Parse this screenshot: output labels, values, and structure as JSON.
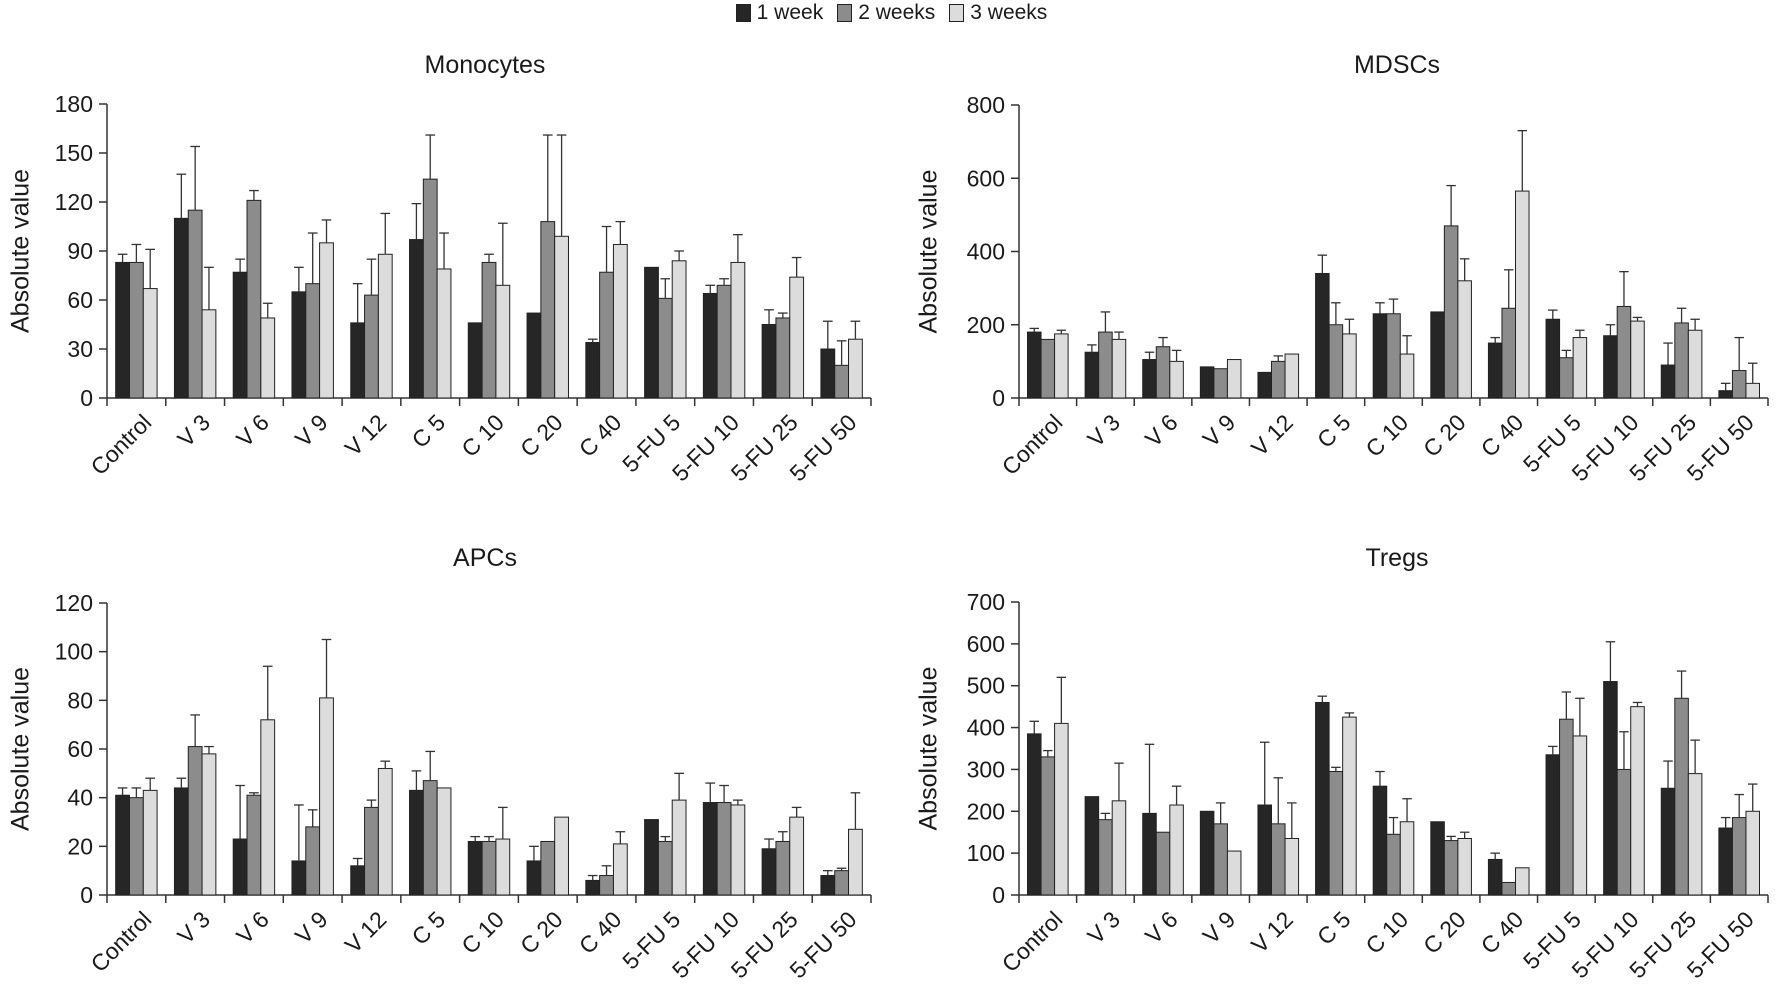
{
  "legend": {
    "items": [
      {
        "label": "1 week",
        "color": "#262626"
      },
      {
        "label": "2 weeks",
        "color": "#8c8c8c"
      },
      {
        "label": "3 weeks",
        "color": "#dcdcdc"
      }
    ]
  },
  "chart_data": [
    {
      "type": "bar",
      "title": "Monocytes",
      "ylabel": "Absolute value",
      "xlabel": "",
      "ylim": [
        0,
        180
      ],
      "yticks": [
        0,
        30,
        60,
        90,
        120,
        150,
        180
      ],
      "categories": [
        "Control",
        "V 3",
        "V 6",
        "V 9",
        "V 12",
        "C 5",
        "C 10",
        "C 20",
        "C 40",
        "5-FU 5",
        "5-FU 10",
        "5-FU 25",
        "5-FU 50"
      ],
      "series": [
        {
          "name": "1 week",
          "values": [
            83,
            110,
            77,
            65,
            46,
            97,
            46,
            52,
            34,
            80,
            64,
            45,
            30
          ],
          "errors": [
            5,
            27,
            8,
            15,
            24,
            22,
            0,
            0,
            2,
            0,
            5,
            9,
            17
          ]
        },
        {
          "name": "2 weeks",
          "values": [
            83,
            115,
            121,
            70,
            63,
            134,
            83,
            108,
            77,
            61,
            69,
            49,
            20
          ],
          "errors": [
            11,
            39,
            6,
            31,
            22,
            27,
            5,
            53,
            28,
            12,
            4,
            3,
            15
          ]
        },
        {
          "name": "3 weeks",
          "values": [
            67,
            54,
            49,
            95,
            88,
            79,
            69,
            99,
            94,
            84,
            83,
            74,
            36
          ],
          "errors": [
            24,
            26,
            9,
            14,
            25,
            22,
            38,
            62,
            14,
            6,
            17,
            12,
            11
          ]
        }
      ]
    },
    {
      "type": "bar",
      "title": "MDSCs",
      "ylabel": "Absolute value",
      "xlabel": "",
      "ylim": [
        0,
        800
      ],
      "yticks": [
        0,
        200,
        400,
        600,
        800
      ],
      "categories": [
        "Control",
        "V 3",
        "V 6",
        "V 9",
        "V 12",
        "C 5",
        "C 10",
        "C 20",
        "C 40",
        "5-FU 5",
        "5-FU 10",
        "5-FU 25",
        "5-FU 50"
      ],
      "series": [
        {
          "name": "1 week",
          "values": [
            180,
            125,
            105,
            85,
            70,
            340,
            230,
            235,
            150,
            215,
            170,
            90,
            20
          ],
          "errors": [
            10,
            20,
            20,
            0,
            0,
            50,
            30,
            0,
            15,
            25,
            30,
            60,
            20
          ]
        },
        {
          "name": "2 weeks",
          "values": [
            160,
            180,
            140,
            80,
            100,
            200,
            230,
            470,
            245,
            110,
            250,
            205,
            75
          ],
          "errors": [
            0,
            55,
            25,
            0,
            15,
            60,
            40,
            110,
            105,
            20,
            95,
            40,
            90
          ]
        },
        {
          "name": "3 weeks",
          "values": [
            175,
            160,
            100,
            105,
            120,
            175,
            120,
            320,
            565,
            165,
            210,
            185,
            40
          ],
          "errors": [
            10,
            20,
            30,
            0,
            0,
            40,
            50,
            60,
            165,
            20,
            10,
            30,
            55
          ]
        }
      ]
    },
    {
      "type": "bar",
      "title": "APCs",
      "ylabel": "Absolute value",
      "xlabel": "",
      "ylim": [
        0,
        120
      ],
      "yticks": [
        0,
        20,
        40,
        60,
        80,
        100,
        120
      ],
      "categories": [
        "Control",
        "V 3",
        "V 6",
        "V 9",
        "V 12",
        "C 5",
        "C 10",
        "C 20",
        "C 40",
        "5-FU 5",
        "5-FU 10",
        "5-FU 25",
        "5-FU 50"
      ],
      "series": [
        {
          "name": "1 week",
          "values": [
            41,
            44,
            23,
            14,
            12,
            43,
            22,
            14,
            6,
            31,
            38,
            19,
            8
          ],
          "errors": [
            3,
            4,
            22,
            23,
            3,
            8,
            2,
            6,
            2,
            0,
            8,
            4,
            2
          ]
        },
        {
          "name": "2 weeks",
          "values": [
            40,
            61,
            41,
            28,
            36,
            47,
            22,
            22,
            8,
            22,
            38,
            22,
            10
          ],
          "errors": [
            4,
            13,
            1,
            7,
            3,
            12,
            2,
            0,
            4,
            2,
            7,
            4,
            1
          ]
        },
        {
          "name": "3 weeks",
          "values": [
            43,
            58,
            72,
            81,
            52,
            44,
            23,
            32,
            21,
            39,
            37,
            32,
            27
          ],
          "errors": [
            5,
            3,
            22,
            24,
            3,
            0,
            13,
            0,
            5,
            11,
            2,
            4,
            15
          ]
        }
      ]
    },
    {
      "type": "bar",
      "title": "Tregs",
      "ylabel": "Absolute value",
      "xlabel": "",
      "ylim": [
        0,
        700
      ],
      "yticks": [
        0,
        100,
        200,
        300,
        400,
        500,
        600,
        700
      ],
      "categories": [
        "Control",
        "V 3",
        "V 6",
        "V 9",
        "V 12",
        "C 5",
        "C 10",
        "C 20",
        "C 40",
        "5-FU 5",
        "5-FU 10",
        "5-FU 25",
        "5-FU 50"
      ],
      "series": [
        {
          "name": "1 week",
          "values": [
            385,
            235,
            195,
            200,
            215,
            460,
            260,
            175,
            85,
            335,
            510,
            255,
            160
          ],
          "errors": [
            30,
            0,
            165,
            0,
            150,
            15,
            35,
            0,
            15,
            20,
            95,
            65,
            25
          ]
        },
        {
          "name": "2 weeks",
          "values": [
            330,
            180,
            150,
            170,
            170,
            295,
            145,
            130,
            30,
            420,
            300,
            470,
            185
          ],
          "errors": [
            15,
            15,
            0,
            50,
            110,
            10,
            40,
            10,
            0,
            65,
            90,
            65,
            55
          ]
        },
        {
          "name": "3 weeks",
          "values": [
            410,
            225,
            215,
            105,
            135,
            425,
            175,
            135,
            65,
            380,
            450,
            290,
            200
          ],
          "errors": [
            110,
            90,
            45,
            0,
            85,
            10,
            55,
            15,
            0,
            90,
            10,
            80,
            65
          ]
        }
      ]
    }
  ]
}
